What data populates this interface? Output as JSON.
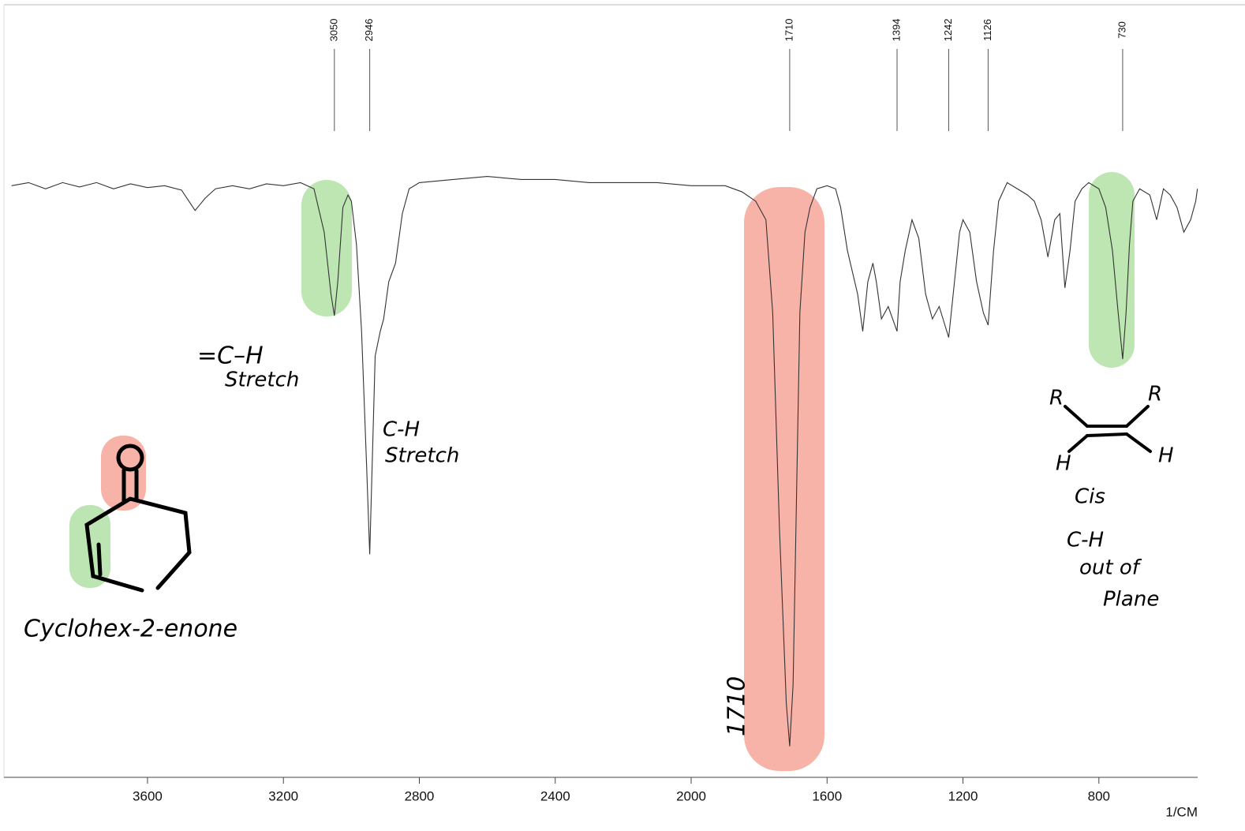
{
  "chart_data": {
    "type": "line",
    "color": "#333333",
    "xlabel": "1/CM",
    "xlim": [
      4000,
      500
    ],
    "ylim": [
      0,
      100
    ],
    "xticks": [
      3600,
      3200,
      2800,
      2400,
      2000,
      1600,
      1200,
      800
    ],
    "peak_labels": [
      3050,
      2946,
      1710,
      1394,
      1242,
      1126,
      730
    ],
    "x": [
      4000,
      3950,
      3900,
      3850,
      3800,
      3750,
      3700,
      3650,
      3600,
      3550,
      3500,
      3460,
      3430,
      3400,
      3350,
      3300,
      3250,
      3200,
      3150,
      3110,
      3080,
      3060,
      3050,
      3040,
      3025,
      3010,
      3000,
      2985,
      2970,
      2955,
      2946,
      2938,
      2930,
      2915,
      2905,
      2890,
      2870,
      2850,
      2830,
      2800,
      2700,
      2600,
      2500,
      2400,
      2300,
      2200,
      2100,
      2000,
      1900,
      1850,
      1810,
      1780,
      1760,
      1740,
      1720,
      1710,
      1700,
      1690,
      1680,
      1665,
      1650,
      1630,
      1600,
      1575,
      1560,
      1540,
      1510,
      1495,
      1480,
      1465,
      1455,
      1440,
      1420,
      1394,
      1385,
      1370,
      1350,
      1330,
      1310,
      1290,
      1270,
      1242,
      1225,
      1210,
      1200,
      1180,
      1160,
      1140,
      1126,
      1110,
      1095,
      1070,
      1040,
      1010,
      990,
      970,
      950,
      930,
      915,
      900,
      885,
      870,
      850,
      830,
      800,
      780,
      760,
      745,
      730,
      720,
      710,
      700,
      680,
      650,
      630,
      610,
      590,
      570,
      550,
      530,
      515,
      510
    ],
    "values": [
      95.5,
      96,
      95,
      96,
      95.3,
      96,
      95,
      95.8,
      95.2,
      95.5,
      94.8,
      91.5,
      93.5,
      95,
      95.5,
      95,
      95.8,
      95.5,
      96,
      95,
      88,
      78,
      74.5,
      80,
      92,
      94,
      93,
      86,
      72,
      50,
      36,
      52,
      68,
      72,
      74,
      80,
      83,
      91,
      95,
      96,
      96.5,
      97,
      96.5,
      96.5,
      96,
      96,
      96,
      95.5,
      95.5,
      94.5,
      93,
      90,
      75,
      40,
      12,
      5,
      15,
      45,
      75,
      88,
      92,
      95,
      95.5,
      95,
      92,
      85,
      78,
      72,
      80,
      83,
      80,
      74,
      76,
      72,
      80,
      85,
      90,
      87,
      78,
      74,
      76,
      71,
      80,
      88,
      90,
      88,
      80,
      75,
      73,
      85,
      93,
      96,
      95,
      94,
      93,
      90,
      84,
      90,
      91,
      79,
      85,
      93,
      95,
      96,
      95,
      92,
      85,
      76,
      67.5,
      75,
      86,
      93,
      95,
      94,
      90,
      95,
      94,
      92,
      88,
      90,
      93,
      95
    ]
  },
  "annotations": {
    "alkene_ch": [
      "=C–H",
      "Stretch"
    ],
    "alkane_ch": [
      "C-H",
      "Stretch"
    ],
    "compound": "Cyclohex-2-enone",
    "carbonyl": "1710",
    "cis": [
      "R",
      "R",
      "H",
      "H",
      "Cis"
    ],
    "oop": [
      "C-H",
      "out of",
      "Plane"
    ]
  }
}
